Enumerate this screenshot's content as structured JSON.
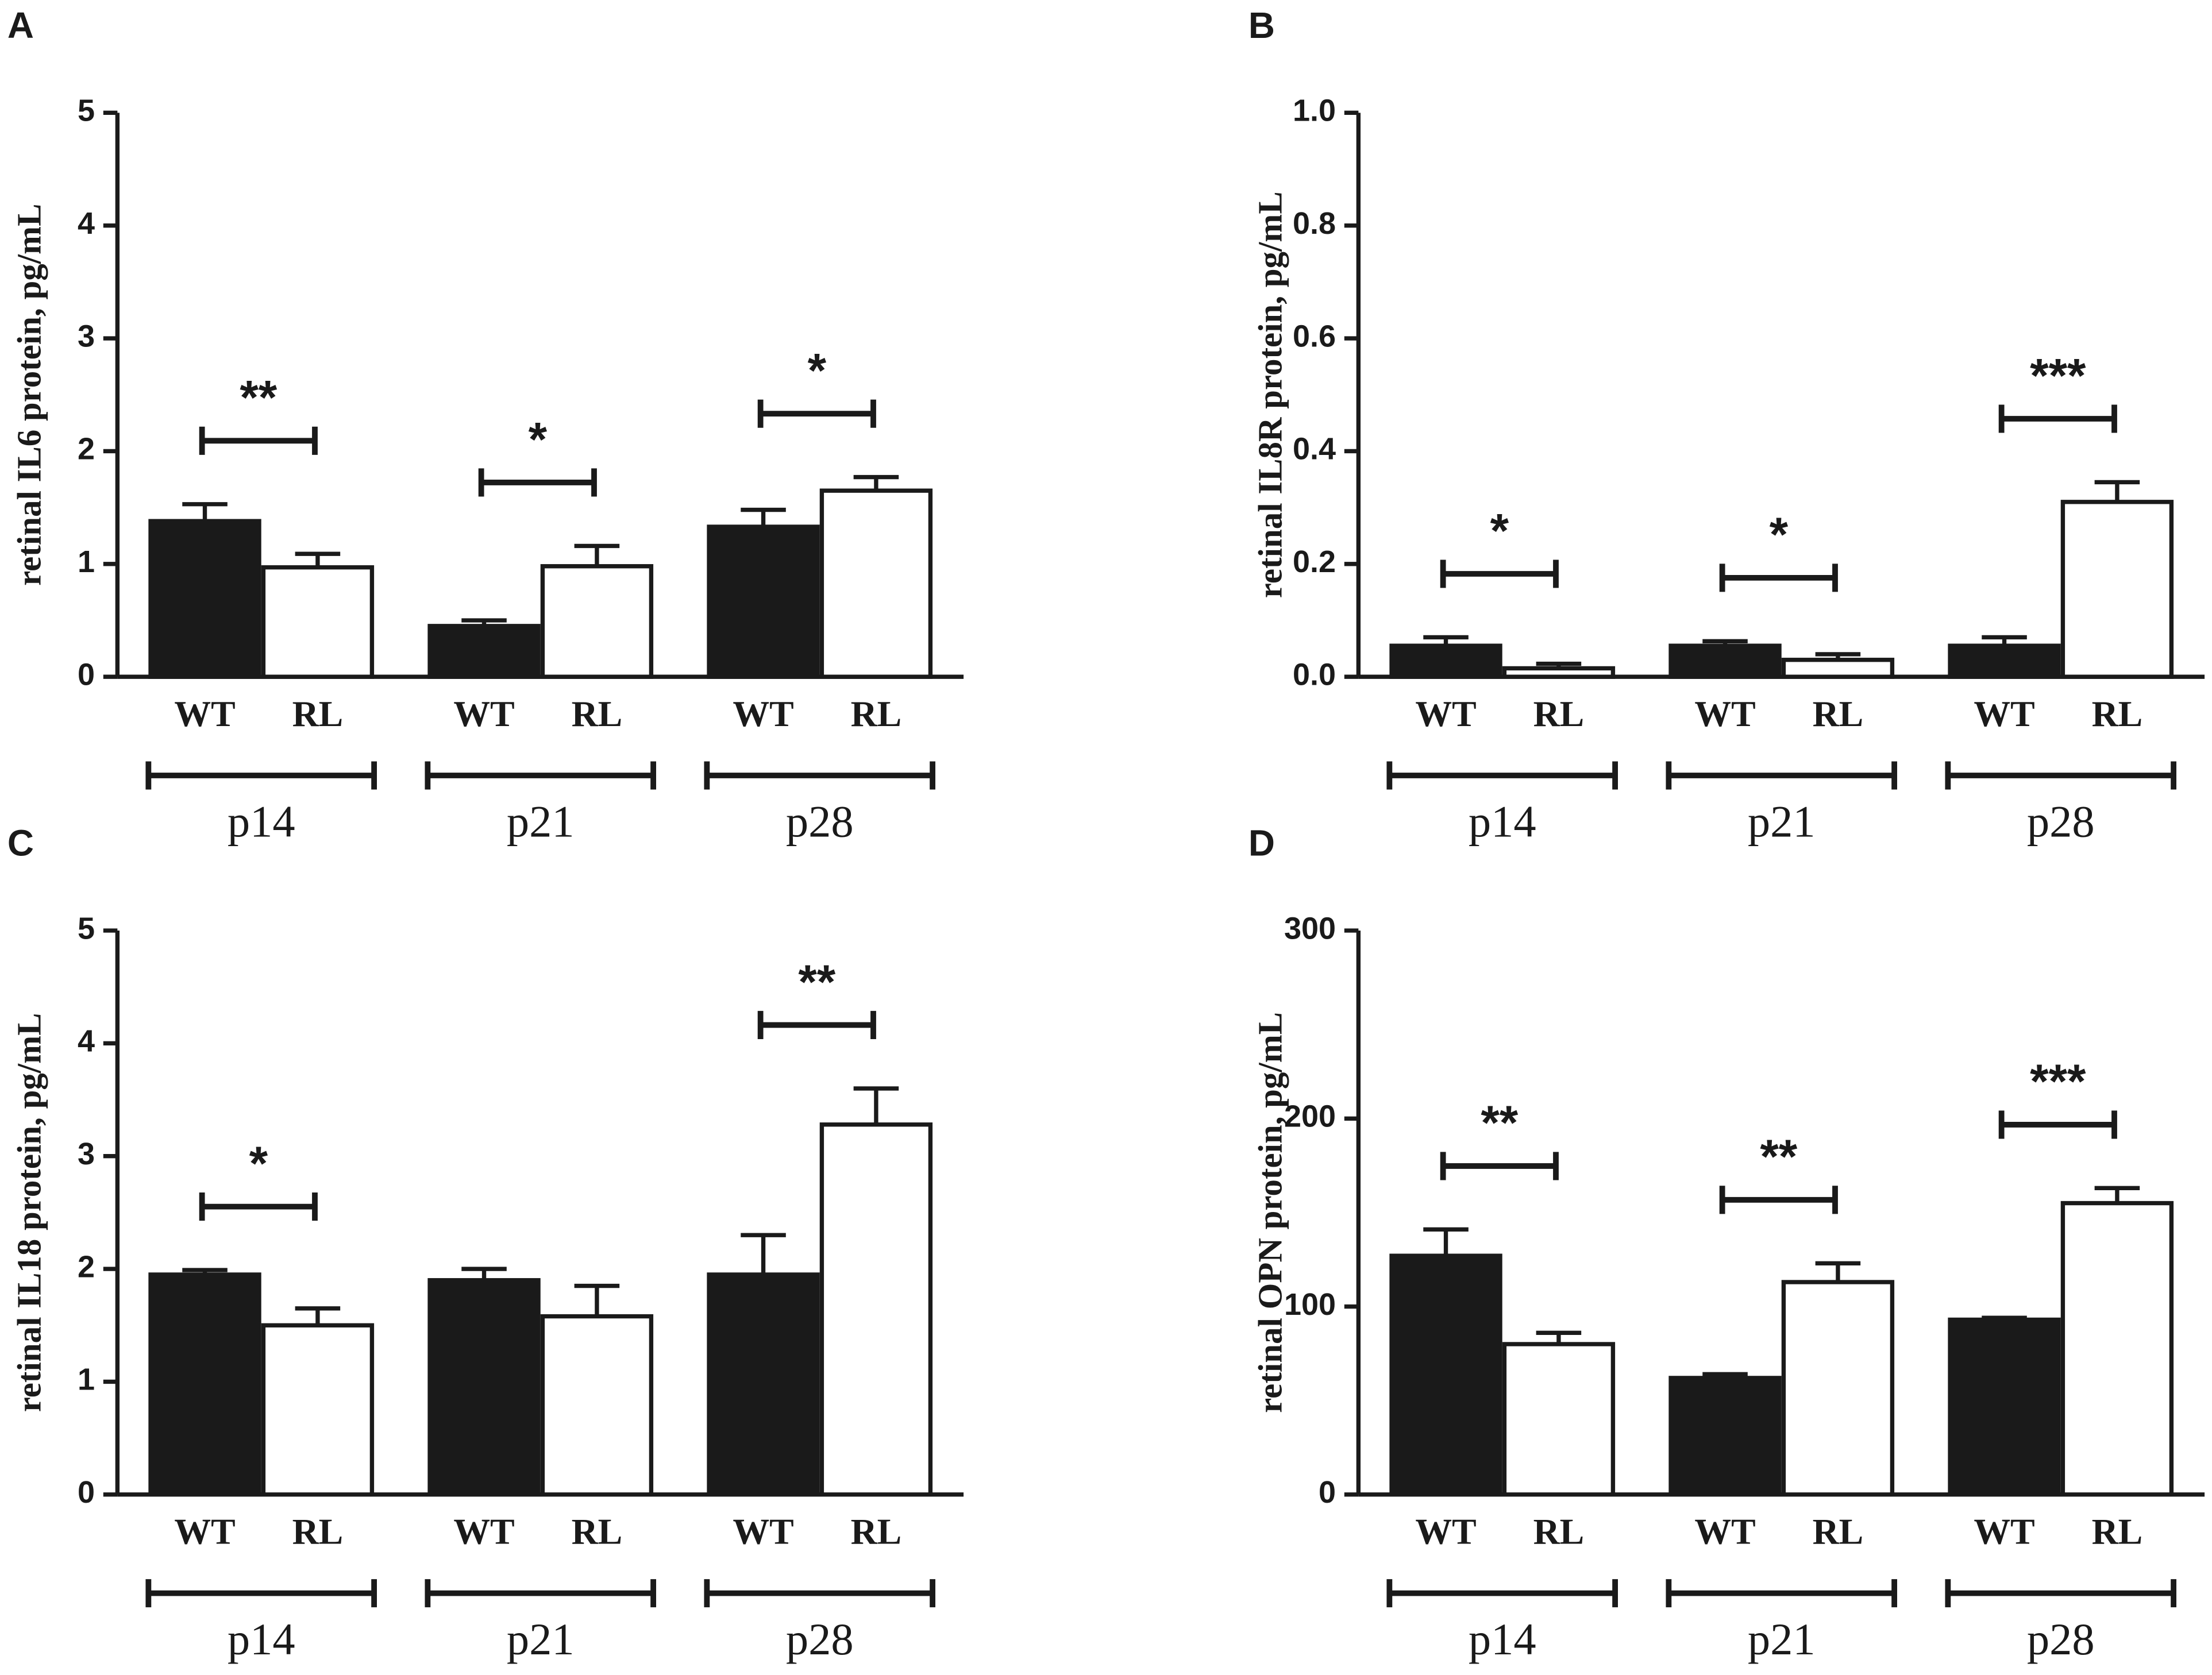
{
  "chart_data": [
    {
      "type": "bar",
      "panel": "A",
      "ylabel": "retinal IL6 protein, pg/mL",
      "categories": [
        "WT",
        "RL",
        "WT",
        "RL",
        "WT",
        "RL"
      ],
      "groups": [
        "p14",
        "p21",
        "p28"
      ],
      "values": [
        1.38,
        0.97,
        0.45,
        0.98,
        1.33,
        1.65
      ],
      "errors": [
        0.15,
        0.12,
        0.05,
        0.18,
        0.15,
        0.12
      ],
      "colors": [
        "#1a1a1a",
        "#ffffff",
        "#1a1a1a",
        "#ffffff",
        "#1a1a1a",
        "#ffffff"
      ],
      "significance": [
        "**",
        "*",
        "*"
      ],
      "ylim": [
        0,
        5
      ],
      "yticks": [
        0,
        1,
        2,
        3,
        4,
        5
      ]
    },
    {
      "type": "bar",
      "panel": "B",
      "ylabel": "retinal IL8R protein, pg/mL",
      "categories": [
        "WT",
        "RL",
        "WT",
        "RL",
        "WT",
        "RL"
      ],
      "groups": [
        "p14",
        "p21",
        "p28"
      ],
      "values": [
        0.055,
        0.015,
        0.055,
        0.03,
        0.055,
        0.31
      ],
      "errors": [
        0.015,
        0.008,
        0.008,
        0.01,
        0.015,
        0.035
      ],
      "colors": [
        "#1a1a1a",
        "#ffffff",
        "#1a1a1a",
        "#ffffff",
        "#1a1a1a",
        "#ffffff"
      ],
      "significance": [
        "*",
        "*",
        "***"
      ],
      "ylim": [
        0,
        1
      ],
      "yticks": [
        {
          "value": 0,
          "label": "0.0"
        },
        0.2,
        0.4,
        0.6,
        0.8,
        {
          "value": 1,
          "label": "1.0"
        }
      ]
    },
    {
      "type": "bar",
      "panel": "C",
      "ylabel": "retinal IL18 protein, pg/mL",
      "categories": [
        "WT",
        "RL",
        "WT",
        "RL",
        "WT",
        "RL"
      ],
      "groups": [
        "p14",
        "p21",
        "p28"
      ],
      "values": [
        1.95,
        1.5,
        1.9,
        1.58,
        1.95,
        3.28
      ],
      "errors": [
        0.04,
        0.15,
        0.1,
        0.27,
        0.35,
        0.32
      ],
      "colors": [
        "#1a1a1a",
        "#ffffff",
        "#1a1a1a",
        "#ffffff",
        "#1a1a1a",
        "#ffffff"
      ],
      "significance": [
        "*",
        null,
        "**"
      ],
      "ylim": [
        0,
        5
      ],
      "yticks": [
        0,
        1,
        2,
        3,
        4,
        5
      ]
    },
    {
      "type": "bar",
      "panel": "D",
      "ylabel": "retinal OPN protein, pg/mL",
      "categories": [
        "WT",
        "RL",
        "WT",
        "RL",
        "WT",
        "RL"
      ],
      "groups": [
        "p14",
        "p21",
        "p28"
      ],
      "values": [
        127,
        80,
        62,
        113,
        93,
        155
      ],
      "errors": [
        14,
        6,
        2,
        10,
        1,
        8
      ],
      "colors": [
        "#1a1a1a",
        "#ffffff",
        "#1a1a1a",
        "#ffffff",
        "#1a1a1a",
        "#ffffff"
      ],
      "significance": [
        "**",
        "**",
        "***"
      ],
      "ylim": [
        0,
        300
      ],
      "yticks": [
        0,
        100,
        200,
        300
      ]
    }
  ]
}
